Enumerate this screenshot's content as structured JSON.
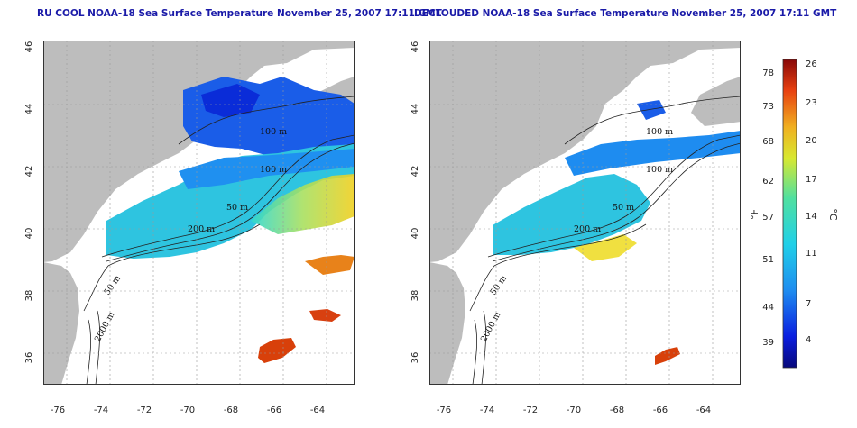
{
  "left_panel": {
    "title": "RU COOL NOAA-18 Sea Surface Temperature November 25, 2007 17:11 GMT"
  },
  "right_panel": {
    "title": "DECLOUDED NOAA-18 Sea Surface Temperature November 25, 2007 17:11 GMT"
  },
  "axes": {
    "x_ticks": [
      "-76",
      "-74",
      "-72",
      "-70",
      "-68",
      "-66",
      "-64"
    ],
    "y_ticks": [
      "36",
      "38",
      "40",
      "42",
      "44",
      "46"
    ]
  },
  "contour_labels": [
    "100 m",
    "100 m",
    "200 m",
    "50 m",
    "2000 m",
    "50 m"
  ],
  "colorbar": {
    "fahrenheit_unit": "°F",
    "celsius_unit": "°C",
    "fahrenheit_ticks": [
      "78",
      "73",
      "68",
      "62",
      "57",
      "51",
      "44",
      "39"
    ],
    "celsius_ticks": [
      "26",
      "23",
      "20",
      "17",
      "14",
      "11",
      "7",
      "4"
    ]
  },
  "colors": {
    "title": "#1a1aa8",
    "land": "#bdbdbd",
    "cold": "#0a20d8",
    "cool": "#1ea8f0",
    "mid": "#27e0c8",
    "warm": "#f0d820",
    "hot": "#d81e0a"
  }
}
